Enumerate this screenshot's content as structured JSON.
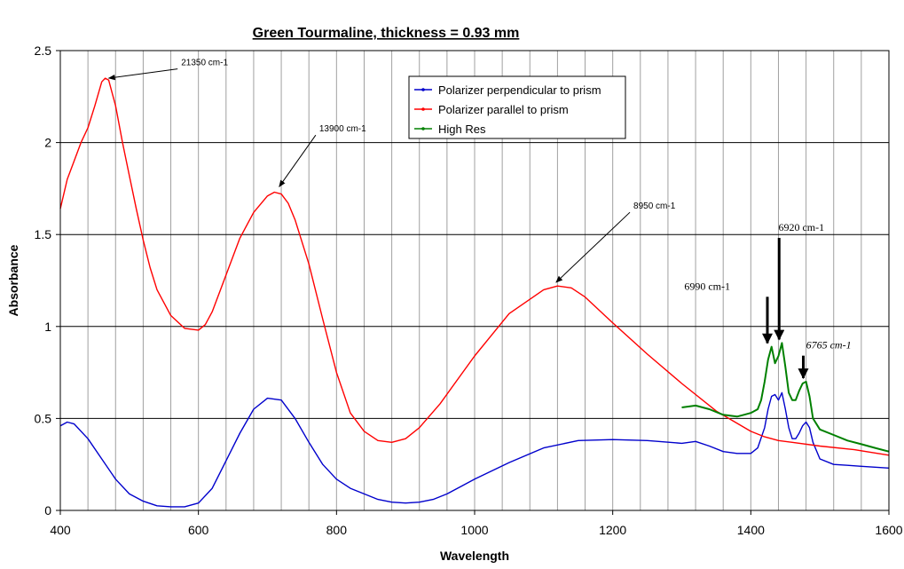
{
  "chart_data": {
    "type": "line",
    "title": "Green Tourmaline, thickness = 0.93 mm",
    "xlabel": "Wavelength",
    "ylabel": "Absorbance",
    "xlim": [
      400,
      1600
    ],
    "ylim": [
      0,
      2.5
    ],
    "x_ticks": [
      "400",
      "600",
      "800",
      "1000",
      "1200",
      "1400",
      "1600"
    ],
    "y_ticks": [
      "0",
      "0.5",
      "1",
      "1.5",
      "2",
      "2.5"
    ],
    "x_minor_grid_step": 40,
    "grid": {
      "x_major": true,
      "x_minor": true,
      "y_major": true
    },
    "legend_position": "top-center",
    "series": [
      {
        "name": "Polarizer perpendicular to prism",
        "color": "#0000cc",
        "x": [
          400,
          410,
          420,
          440,
          460,
          480,
          500,
          520,
          540,
          560,
          580,
          600,
          620,
          640,
          660,
          680,
          700,
          720,
          740,
          760,
          780,
          800,
          820,
          840,
          860,
          880,
          900,
          920,
          940,
          960,
          980,
          1000,
          1050,
          1100,
          1150,
          1200,
          1250,
          1300,
          1320,
          1340,
          1360,
          1380,
          1400,
          1410,
          1420,
          1425,
          1430,
          1435,
          1440,
          1445,
          1450,
          1455,
          1460,
          1465,
          1470,
          1475,
          1480,
          1485,
          1490,
          1500,
          1520,
          1540,
          1560,
          1580,
          1600
        ],
        "y": [
          0.46,
          0.48,
          0.47,
          0.39,
          0.28,
          0.17,
          0.09,
          0.05,
          0.025,
          0.02,
          0.02,
          0.04,
          0.12,
          0.27,
          0.42,
          0.55,
          0.61,
          0.6,
          0.5,
          0.37,
          0.25,
          0.17,
          0.12,
          0.09,
          0.06,
          0.045,
          0.04,
          0.045,
          0.06,
          0.09,
          0.13,
          0.17,
          0.26,
          0.34,
          0.38,
          0.385,
          0.38,
          0.365,
          0.375,
          0.35,
          0.32,
          0.31,
          0.31,
          0.34,
          0.45,
          0.55,
          0.62,
          0.63,
          0.6,
          0.64,
          0.55,
          0.45,
          0.39,
          0.39,
          0.42,
          0.46,
          0.48,
          0.45,
          0.37,
          0.28,
          0.25,
          0.245,
          0.24,
          0.235,
          0.23
        ]
      },
      {
        "name": "Polarizer parallel to prism",
        "color": "#ff0000",
        "x": [
          400,
          410,
          420,
          430,
          440,
          450,
          460,
          465,
          470,
          480,
          490,
          500,
          510,
          520,
          530,
          540,
          560,
          580,
          600,
          610,
          620,
          640,
          660,
          680,
          700,
          710,
          720,
          730,
          740,
          760,
          780,
          800,
          820,
          840,
          860,
          880,
          900,
          920,
          950,
          1000,
          1050,
          1100,
          1120,
          1140,
          1160,
          1200,
          1250,
          1300,
          1350,
          1400,
          1420,
          1440,
          1460,
          1500,
          1550,
          1600
        ],
        "y": [
          1.64,
          1.8,
          1.9,
          2.0,
          2.08,
          2.2,
          2.33,
          2.35,
          2.34,
          2.2,
          2.0,
          1.82,
          1.64,
          1.47,
          1.32,
          1.2,
          1.06,
          0.99,
          0.98,
          1.01,
          1.08,
          1.28,
          1.48,
          1.62,
          1.71,
          1.73,
          1.72,
          1.67,
          1.58,
          1.34,
          1.04,
          0.75,
          0.53,
          0.43,
          0.38,
          0.37,
          0.39,
          0.45,
          0.58,
          0.84,
          1.07,
          1.2,
          1.22,
          1.21,
          1.16,
          1.02,
          0.85,
          0.69,
          0.54,
          0.43,
          0.4,
          0.38,
          0.37,
          0.35,
          0.33,
          0.3
        ]
      },
      {
        "name": "High Res",
        "color": "#008000",
        "x": [
          1300,
          1320,
          1340,
          1360,
          1380,
          1390,
          1400,
          1410,
          1415,
          1420,
          1425,
          1430,
          1435,
          1440,
          1445,
          1450,
          1455,
          1460,
          1465,
          1470,
          1475,
          1480,
          1485,
          1490,
          1500,
          1520,
          1540,
          1560,
          1580,
          1600
        ],
        "y": [
          0.56,
          0.57,
          0.55,
          0.52,
          0.51,
          0.52,
          0.53,
          0.55,
          0.6,
          0.7,
          0.82,
          0.89,
          0.8,
          0.84,
          0.91,
          0.78,
          0.64,
          0.6,
          0.6,
          0.65,
          0.69,
          0.7,
          0.62,
          0.5,
          0.44,
          0.41,
          0.38,
          0.36,
          0.34,
          0.32
        ]
      }
    ],
    "annotations": [
      {
        "text": "21350 cm-1",
        "font": "sans",
        "at": [
          470,
          2.35
        ],
        "label": [
          575,
          2.42
        ]
      },
      {
        "text": "13900 cm-1",
        "font": "sans",
        "at": [
          717,
          1.76
        ],
        "label": [
          775,
          2.06
        ]
      },
      {
        "text": "8950 cm-1",
        "font": "sans",
        "at": [
          1118,
          1.24
        ],
        "label": [
          1230,
          1.64
        ]
      },
      {
        "text": "6990 cm-1",
        "font": "serif",
        "at": [
          1424,
          0.9
        ],
        "label": [
          1370,
          1.2
        ]
      },
      {
        "text": "6920 cm-1",
        "font": "serif",
        "at": [
          1441,
          0.92
        ],
        "label": [
          1440,
          1.52
        ]
      },
      {
        "text": "6765 cm-1",
        "font": "serif",
        "at": [
          1476,
          0.71
        ],
        "label": [
          1480,
          0.88
        ]
      }
    ]
  }
}
